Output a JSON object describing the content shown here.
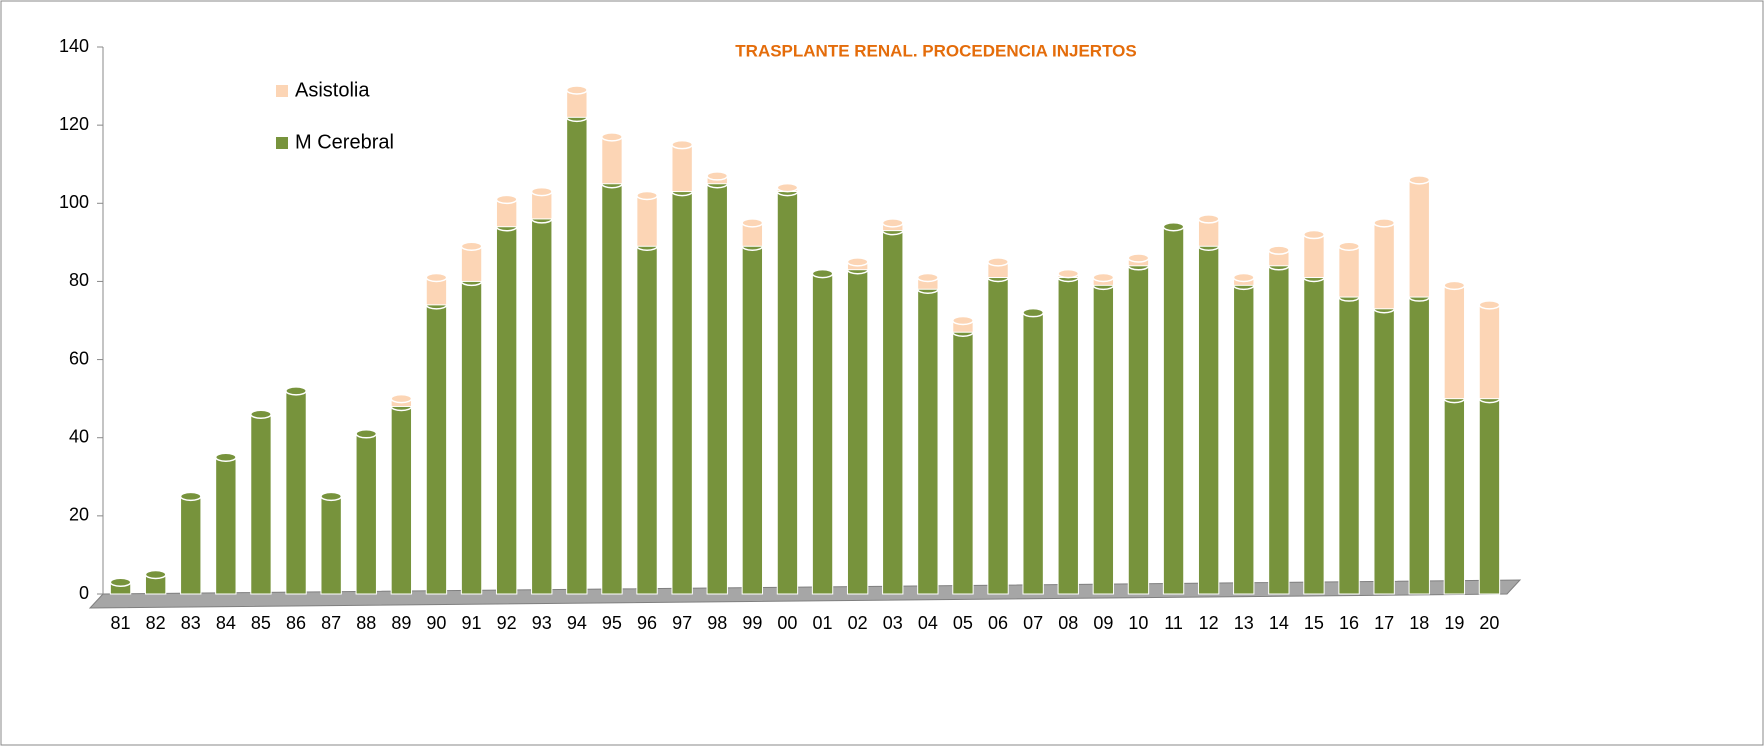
{
  "chart_data": {
    "type": "stacked_bar",
    "title": "TRASPLANTE RENAL. PROCEDENCIA INJERTOS",
    "categories": [
      "81",
      "82",
      "83",
      "84",
      "85",
      "86",
      "87",
      "88",
      "89",
      "90",
      "91",
      "92",
      "93",
      "94",
      "95",
      "96",
      "97",
      "98",
      "99",
      "00",
      "01",
      "02",
      "03",
      "04",
      "05",
      "06",
      "07",
      "08",
      "09",
      "10",
      "11",
      "12",
      "13",
      "14",
      "15",
      "16",
      "17",
      "18",
      "19",
      "20"
    ],
    "series": [
      {
        "name": "M Cerebral",
        "color": "#77933c",
        "values": [
          3,
          5,
          25,
          35,
          46,
          52,
          25,
          41,
          48,
          74,
          80,
          94,
          96,
          122,
          105,
          89,
          103,
          105,
          89,
          103,
          82,
          83,
          93,
          78,
          67,
          81,
          72,
          81,
          79,
          84,
          94,
          89,
          79,
          84,
          81,
          76,
          73,
          76,
          50,
          50
        ]
      },
      {
        "name": "Asistolia",
        "color": "#fcd5b5",
        "values": [
          0,
          0,
          0,
          0,
          0,
          0,
          0,
          0,
          2,
          7,
          9,
          7,
          7,
          7,
          12,
          13,
          12,
          2,
          6,
          1,
          0,
          2,
          2,
          3,
          3,
          4,
          0,
          1,
          2,
          2,
          0,
          7,
          2,
          4,
          11,
          13,
          22,
          30,
          29,
          24
        ]
      }
    ],
    "ylim": [
      0,
      140
    ],
    "yticks": [
      0,
      20,
      40,
      60,
      80,
      100,
      120,
      140
    ],
    "legend": "upper left"
  }
}
